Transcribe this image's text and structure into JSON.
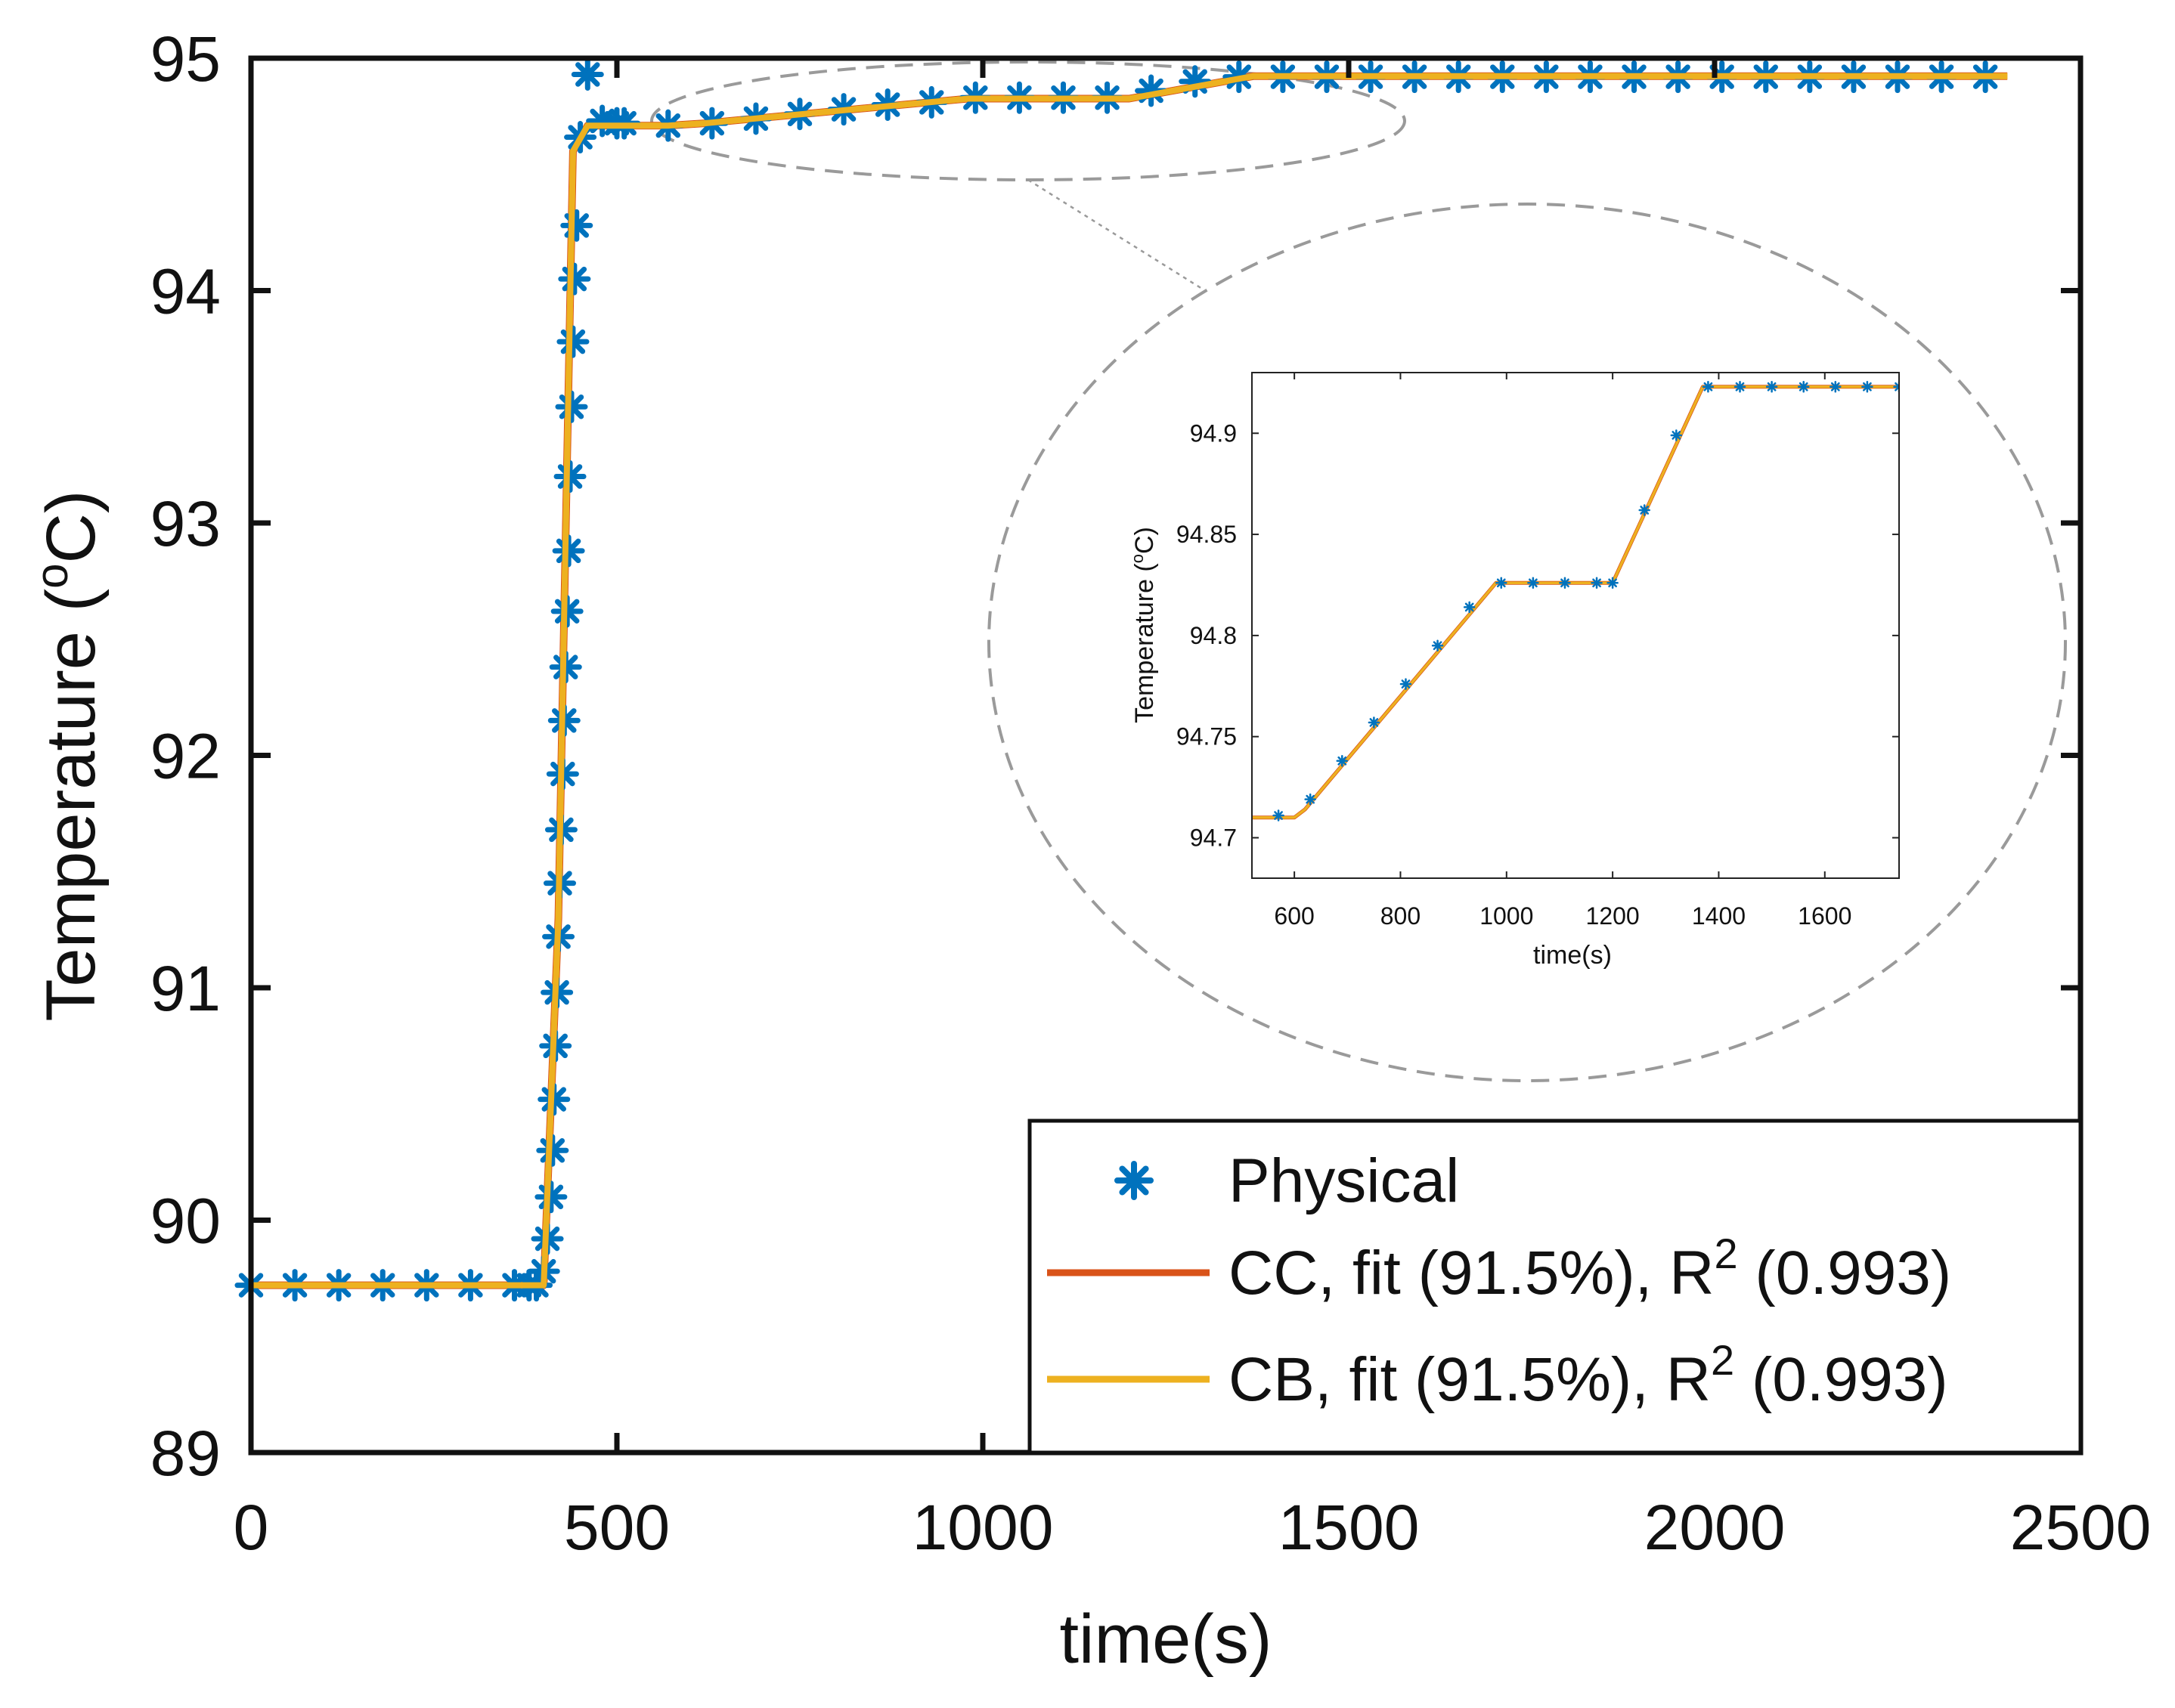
{
  "chart_data": [
    {
      "type": "line",
      "role": "main",
      "xlabel": "time(s)",
      "ylabel_main": "Temperature (",
      "ylabel_super": "o",
      "ylabel_tail": "C)",
      "xlim": [
        0,
        2500
      ],
      "ylim": [
        89,
        95
      ],
      "xticks": [
        0,
        500,
        1000,
        1500,
        2000,
        2500
      ],
      "xtick_labels": [
        "0",
        "500",
        "1000",
        "1500",
        "2000",
        "2500"
      ],
      "yticks": [
        89,
        90,
        91,
        92,
        93,
        94,
        95
      ],
      "ytick_labels": [
        "89",
        "90",
        "91",
        "92",
        "93",
        "94",
        "95"
      ],
      "grid": false,
      "legend_position": "bottom-right",
      "series": [
        {
          "name": "Physical",
          "style": "markers",
          "marker": "asterisk",
          "color": "#0072BD",
          "x": [
            0,
            60,
            120,
            180,
            240,
            300,
            360,
            380,
            390,
            400,
            405,
            410,
            412,
            414,
            416,
            418,
            420,
            422,
            424,
            426,
            428,
            430,
            432,
            434,
            436,
            438,
            440,
            442,
            445,
            450,
            460,
            480,
            500,
            510,
            570,
            630,
            690,
            750,
            810,
            870,
            930,
            990,
            1050,
            1110,
            1170,
            1230,
            1290,
            1350,
            1410,
            1470,
            1530,
            1590,
            1650,
            1710,
            1770,
            1830,
            1890,
            1950,
            2010,
            2070,
            2130,
            2190,
            2250,
            2310,
            2370
          ],
          "y": [
            89.72,
            89.72,
            89.72,
            89.72,
            89.72,
            89.72,
            89.72,
            89.72,
            89.72,
            89.78,
            89.92,
            90.1,
            90.3,
            90.52,
            90.75,
            90.98,
            91.22,
            91.45,
            91.68,
            91.92,
            92.15,
            92.38,
            92.62,
            92.88,
            93.2,
            93.5,
            93.78,
            94.05,
            94.28,
            94.66,
            94.93,
            94.73,
            94.72,
            94.72,
            94.71,
            94.72,
            94.74,
            94.76,
            94.78,
            94.8,
            94.81,
            94.83,
            94.83,
            94.83,
            94.83,
            94.86,
            94.9,
            94.92,
            94.92,
            94.92,
            94.92,
            94.92,
            94.92,
            94.92,
            94.92,
            94.92,
            94.92,
            94.92,
            94.92,
            94.92,
            94.92,
            94.92,
            94.92,
            94.92,
            94.92
          ]
        },
        {
          "name": "CC, fit (91.5%), R",
          "name_super": "2",
          "name_tail": " (0.993)",
          "style": "line",
          "color": "#D95319",
          "x": [
            0,
            380,
            400,
            420,
            440,
            460,
            480,
            570,
            620,
            980,
            1200,
            1370,
            2400
          ],
          "y": [
            89.72,
            89.72,
            89.72,
            91.3,
            94.6,
            94.71,
            94.71,
            94.71,
            94.72,
            94.826,
            94.826,
            94.923,
            94.923
          ]
        },
        {
          "name": "CB, fit (91.5%), R",
          "name_super": "2",
          "name_tail": " (0.993)",
          "style": "line",
          "color": "#EDB120",
          "x": [
            0,
            380,
            400,
            420,
            440,
            460,
            480,
            570,
            620,
            980,
            1200,
            1370,
            2400
          ],
          "y": [
            89.72,
            89.72,
            89.72,
            91.3,
            94.6,
            94.71,
            94.71,
            94.71,
            94.72,
            94.826,
            94.826,
            94.923,
            94.923
          ]
        }
      ]
    },
    {
      "type": "line",
      "role": "inset",
      "xlabel": "time(s)",
      "ylabel_main": "Temperature (",
      "ylabel_super": "o",
      "ylabel_tail": "C)",
      "xlim": [
        520,
        1740
      ],
      "ylim": [
        94.68,
        94.93
      ],
      "xticks": [
        600,
        800,
        1000,
        1200,
        1400,
        1600
      ],
      "xtick_labels": [
        "600",
        "800",
        "1000",
        "1200",
        "1400",
        "1600"
      ],
      "yticks": [
        94.7,
        94.75,
        94.8,
        94.85,
        94.9
      ],
      "ytick_labels": [
        "94.7",
        "94.75",
        "94.8",
        "94.85",
        "94.9"
      ],
      "grid": false,
      "series": [
        {
          "name": "Physical",
          "style": "markers",
          "marker": "asterisk",
          "color": "#0072BD",
          "x": [
            570,
            630,
            690,
            750,
            810,
            870,
            930,
            990,
            1050,
            1110,
            1170,
            1200,
            1260,
            1320,
            1380,
            1440,
            1500,
            1560,
            1620,
            1680,
            1740
          ],
          "y": [
            94.711,
            94.719,
            94.738,
            94.757,
            94.776,
            94.795,
            94.814,
            94.826,
            94.826,
            94.826,
            94.826,
            94.826,
            94.862,
            94.899,
            94.923,
            94.923,
            94.923,
            94.923,
            94.923,
            94.923,
            94.923
          ]
        },
        {
          "name": "CC",
          "style": "line",
          "color": "#D95319",
          "x": [
            520,
            600,
            620,
            980,
            1200,
            1370,
            1740
          ],
          "y": [
            94.71,
            94.71,
            94.714,
            94.826,
            94.826,
            94.923,
            94.923
          ]
        },
        {
          "name": "CB",
          "style": "line",
          "color": "#EDB120",
          "x": [
            520,
            600,
            620,
            980,
            1200,
            1370,
            1740
          ],
          "y": [
            94.71,
            94.71,
            94.714,
            94.826,
            94.826,
            94.923,
            94.923
          ]
        }
      ]
    }
  ],
  "colors": {
    "axes": "#111111",
    "physical": "#0072BD",
    "cc": "#D95319",
    "cb": "#EDB120",
    "zoom_ellipse": "#9a9a9a"
  }
}
